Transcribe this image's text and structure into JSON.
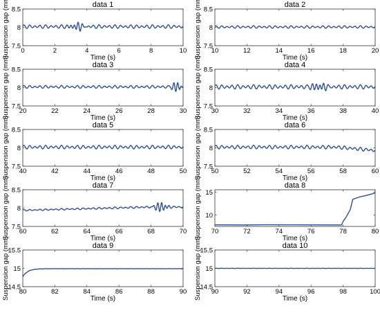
{
  "chart_data": [
    {
      "type": "line",
      "title": "data 1",
      "xlabel": "Time (s)",
      "ylabel": "Suspension gap (mm)",
      "xlim": [
        0,
        10
      ],
      "ylim": [
        7.5,
        8.5
      ],
      "xticks": [
        0,
        2,
        4,
        6,
        8,
        10
      ],
      "yticks": [
        7.5,
        8,
        8.5
      ],
      "baseline": 8.02,
      "ripple": [
        0.05,
        0.05
      ],
      "features": [
        {
          "x": 3.4,
          "w": 0.45,
          "a": 0.09
        }
      ],
      "ramp": null,
      "approach": null
    },
    {
      "type": "line",
      "title": "data 2",
      "xlabel": "Time (s)",
      "ylabel": "Suspension gap (mm)",
      "xlim": [
        10,
        20
      ],
      "ylim": [
        7.5,
        8.5
      ],
      "xticks": [
        10,
        12,
        14,
        16,
        18,
        20
      ],
      "yticks": [
        7.5,
        8,
        8.5
      ],
      "baseline": 8.01,
      "ripple": [
        0.035,
        0.035
      ],
      "features": [],
      "ramp": null,
      "approach": null
    },
    {
      "type": "line",
      "title": "data 3",
      "xlabel": "Time (s)",
      "ylabel": "Suspension gap (mm)",
      "xlim": [
        20,
        30
      ],
      "ylim": [
        7.5,
        8.5
      ],
      "xticks": [
        20,
        22,
        24,
        26,
        28,
        30
      ],
      "yticks": [
        7.5,
        8,
        8.5
      ],
      "baseline": 8.02,
      "ripple": [
        0.04,
        0.04
      ],
      "features": [
        {
          "x": 29.6,
          "w": 0.3,
          "a": 0.12
        }
      ],
      "ramp": null,
      "approach": null
    },
    {
      "type": "line",
      "title": "data 4",
      "xlabel": "Time (s)",
      "ylabel": "Suspension gap (mm)",
      "xlim": [
        30,
        40
      ],
      "ylim": [
        7.5,
        8.5
      ],
      "xticks": [
        30,
        32,
        34,
        36,
        38,
        40
      ],
      "yticks": [
        7.5,
        8,
        8.5
      ],
      "baseline": 8.02,
      "ripple": [
        0.06,
        0.06
      ],
      "features": [
        {
          "x": 36.5,
          "w": 0.5,
          "a": 0.09
        }
      ],
      "ramp": null,
      "approach": null
    },
    {
      "type": "line",
      "title": "data 5",
      "xlabel": "Time (s)",
      "ylabel": "Suspension gap (mm)",
      "xlim": [
        40,
        50
      ],
      "ylim": [
        7.5,
        8.5
      ],
      "xticks": [
        40,
        42,
        44,
        46,
        48,
        50
      ],
      "yticks": [
        7.5,
        8,
        8.5
      ],
      "baseline": 8.02,
      "ripple": [
        0.05,
        0.05
      ],
      "features": [],
      "ramp": null,
      "approach": null
    },
    {
      "type": "line",
      "title": "data 6",
      "xlabel": "Time (s)",
      "ylabel": "Suspension gap (mm)",
      "xlim": [
        50,
        60
      ],
      "ylim": [
        7.5,
        8.5
      ],
      "xticks": [
        50,
        52,
        54,
        56,
        58,
        60
      ],
      "yticks": [
        7.5,
        8,
        8.5
      ],
      "baseline": 8.02,
      "ripple": [
        0.05,
        0.05
      ],
      "features": [],
      "ramp": [
        57.6,
        60,
        7.93
      ],
      "approach": null
    },
    {
      "type": "line",
      "title": "data 7",
      "xlabel": "Time (s)",
      "ylabel": "Suspension gap (mm)",
      "xlim": [
        60,
        70
      ],
      "ylim": [
        7.5,
        8.5
      ],
      "xticks": [
        60,
        62,
        64,
        66,
        68,
        70
      ],
      "yticks": [
        7.5,
        8,
        8.5
      ],
      "baseline": 7.94,
      "ripple": [
        0.02,
        0.03
      ],
      "features": [
        {
          "x": 68.6,
          "w": 0.4,
          "a": 0.12
        }
      ],
      "ramp": [
        60,
        68,
        8.03
      ],
      "approach": null
    },
    {
      "type": "line",
      "title": "data 8",
      "xlabel": "Time (s)",
      "ylabel": "Suspension gap (mm)",
      "xlim": [
        70,
        80
      ],
      "ylim": [
        7.5,
        15.5
      ],
      "xticks": [
        70,
        72,
        74,
        76,
        78,
        80
      ],
      "yticks": [
        10,
        15
      ],
      "points": [
        [
          70,
          7.85
        ],
        [
          72,
          7.82
        ],
        [
          73,
          7.87
        ],
        [
          75,
          7.85
        ],
        [
          77.9,
          7.82
        ],
        [
          78,
          8.6
        ],
        [
          78.2,
          9.6
        ],
        [
          78.45,
          11.2
        ],
        [
          78.6,
          13.4
        ],
        [
          79,
          13.9
        ],
        [
          79.5,
          14.3
        ],
        [
          80,
          14.8
        ]
      ]
    },
    {
      "type": "line",
      "title": "data 9",
      "xlabel": "Time (s)",
      "ylabel": "Suspension gap (mm)",
      "xlim": [
        80,
        90
      ],
      "ylim": [
        14.5,
        15.5
      ],
      "xticks": [
        80,
        82,
        84,
        86,
        88,
        90
      ],
      "yticks": [
        14.5,
        15,
        15.5
      ],
      "baseline": 14.99,
      "ripple": [
        0.003,
        0.003
      ],
      "features": [],
      "ramp": null,
      "approach": [
        80,
        14.77,
        0.3
      ]
    },
    {
      "type": "line",
      "title": "data 10",
      "xlabel": "Time (s)",
      "ylabel": "Suspension gap (mm)",
      "xlim": [
        90,
        100
      ],
      "ylim": [
        14.5,
        15.5
      ],
      "xticks": [
        90,
        92,
        94,
        96,
        98,
        100
      ],
      "yticks": [
        14.5,
        15,
        15.5
      ],
      "baseline": 15.0,
      "ripple": [
        0.003,
        0.003
      ],
      "features": [],
      "ramp": null,
      "approach": null
    }
  ],
  "colors": {
    "line": "#2f4f8f",
    "axes": "#333333",
    "background": "#ffffff"
  }
}
